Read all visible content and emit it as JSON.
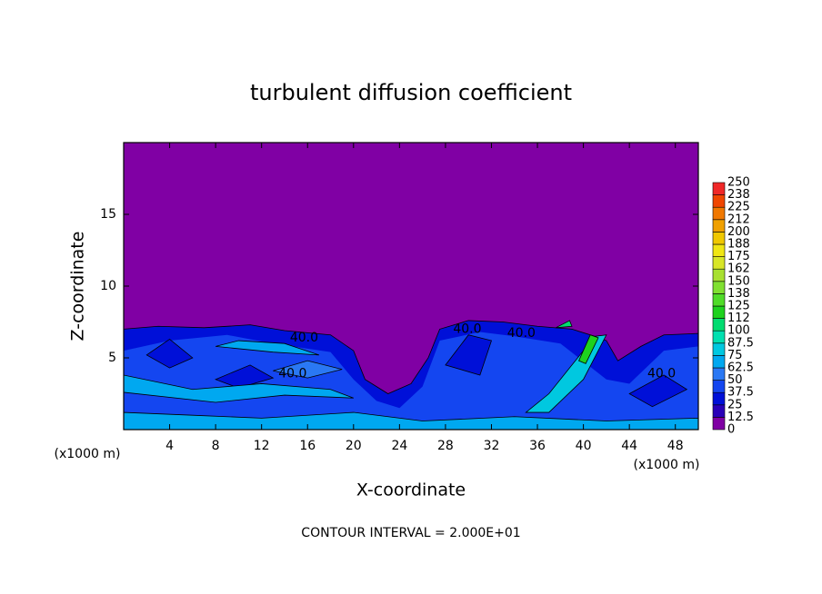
{
  "chart_data": {
    "type": "contour",
    "title": "turbulent diffusion coefficient",
    "xlabel": "X-coordinate",
    "ylabel": "Z-coordinate",
    "x_unit_label": "(x1000 m)",
    "y_unit_label": "(x1000 m)",
    "footer": "CONTOUR INTERVAL = 2.000E+01",
    "xlim": [
      0,
      50
    ],
    "xticks": [
      4,
      8,
      12,
      16,
      20,
      24,
      28,
      32,
      36,
      40,
      44,
      48
    ],
    "ylim": [
      0,
      20
    ],
    "yticks": [
      5,
      10,
      15
    ],
    "colorbar": {
      "levels": [
        0,
        12.5,
        25,
        37.5,
        50,
        62.5,
        75,
        87.5,
        100,
        112,
        125,
        138,
        150,
        162,
        175,
        188,
        200,
        212,
        225,
        238,
        250
      ],
      "colors": [
        "#8000a4",
        "#2a00b8",
        "#0010d8",
        "#1446f0",
        "#2a78f4",
        "#00a8f0",
        "#00c8e0",
        "#00e0b0",
        "#00dc70",
        "#1ed21e",
        "#50dc28",
        "#80e030",
        "#a8e030",
        "#d8e628",
        "#f0e614",
        "#f0c800",
        "#f0a000",
        "#f07800",
        "#f04600",
        "#f02828",
        "#f08a8a"
      ]
    },
    "annotations": [
      {
        "text": "40.0",
        "x": 15.7,
        "y": 6.4
      },
      {
        "text": "40.0",
        "x": 14.7,
        "y": 3.9
      },
      {
        "text": "40.0",
        "x": 29.9,
        "y": 7.0
      },
      {
        "text": "40.0",
        "x": 34.6,
        "y": 6.7
      },
      {
        "text": "40.0",
        "x": 46.8,
        "y": 3.9
      }
    ]
  }
}
